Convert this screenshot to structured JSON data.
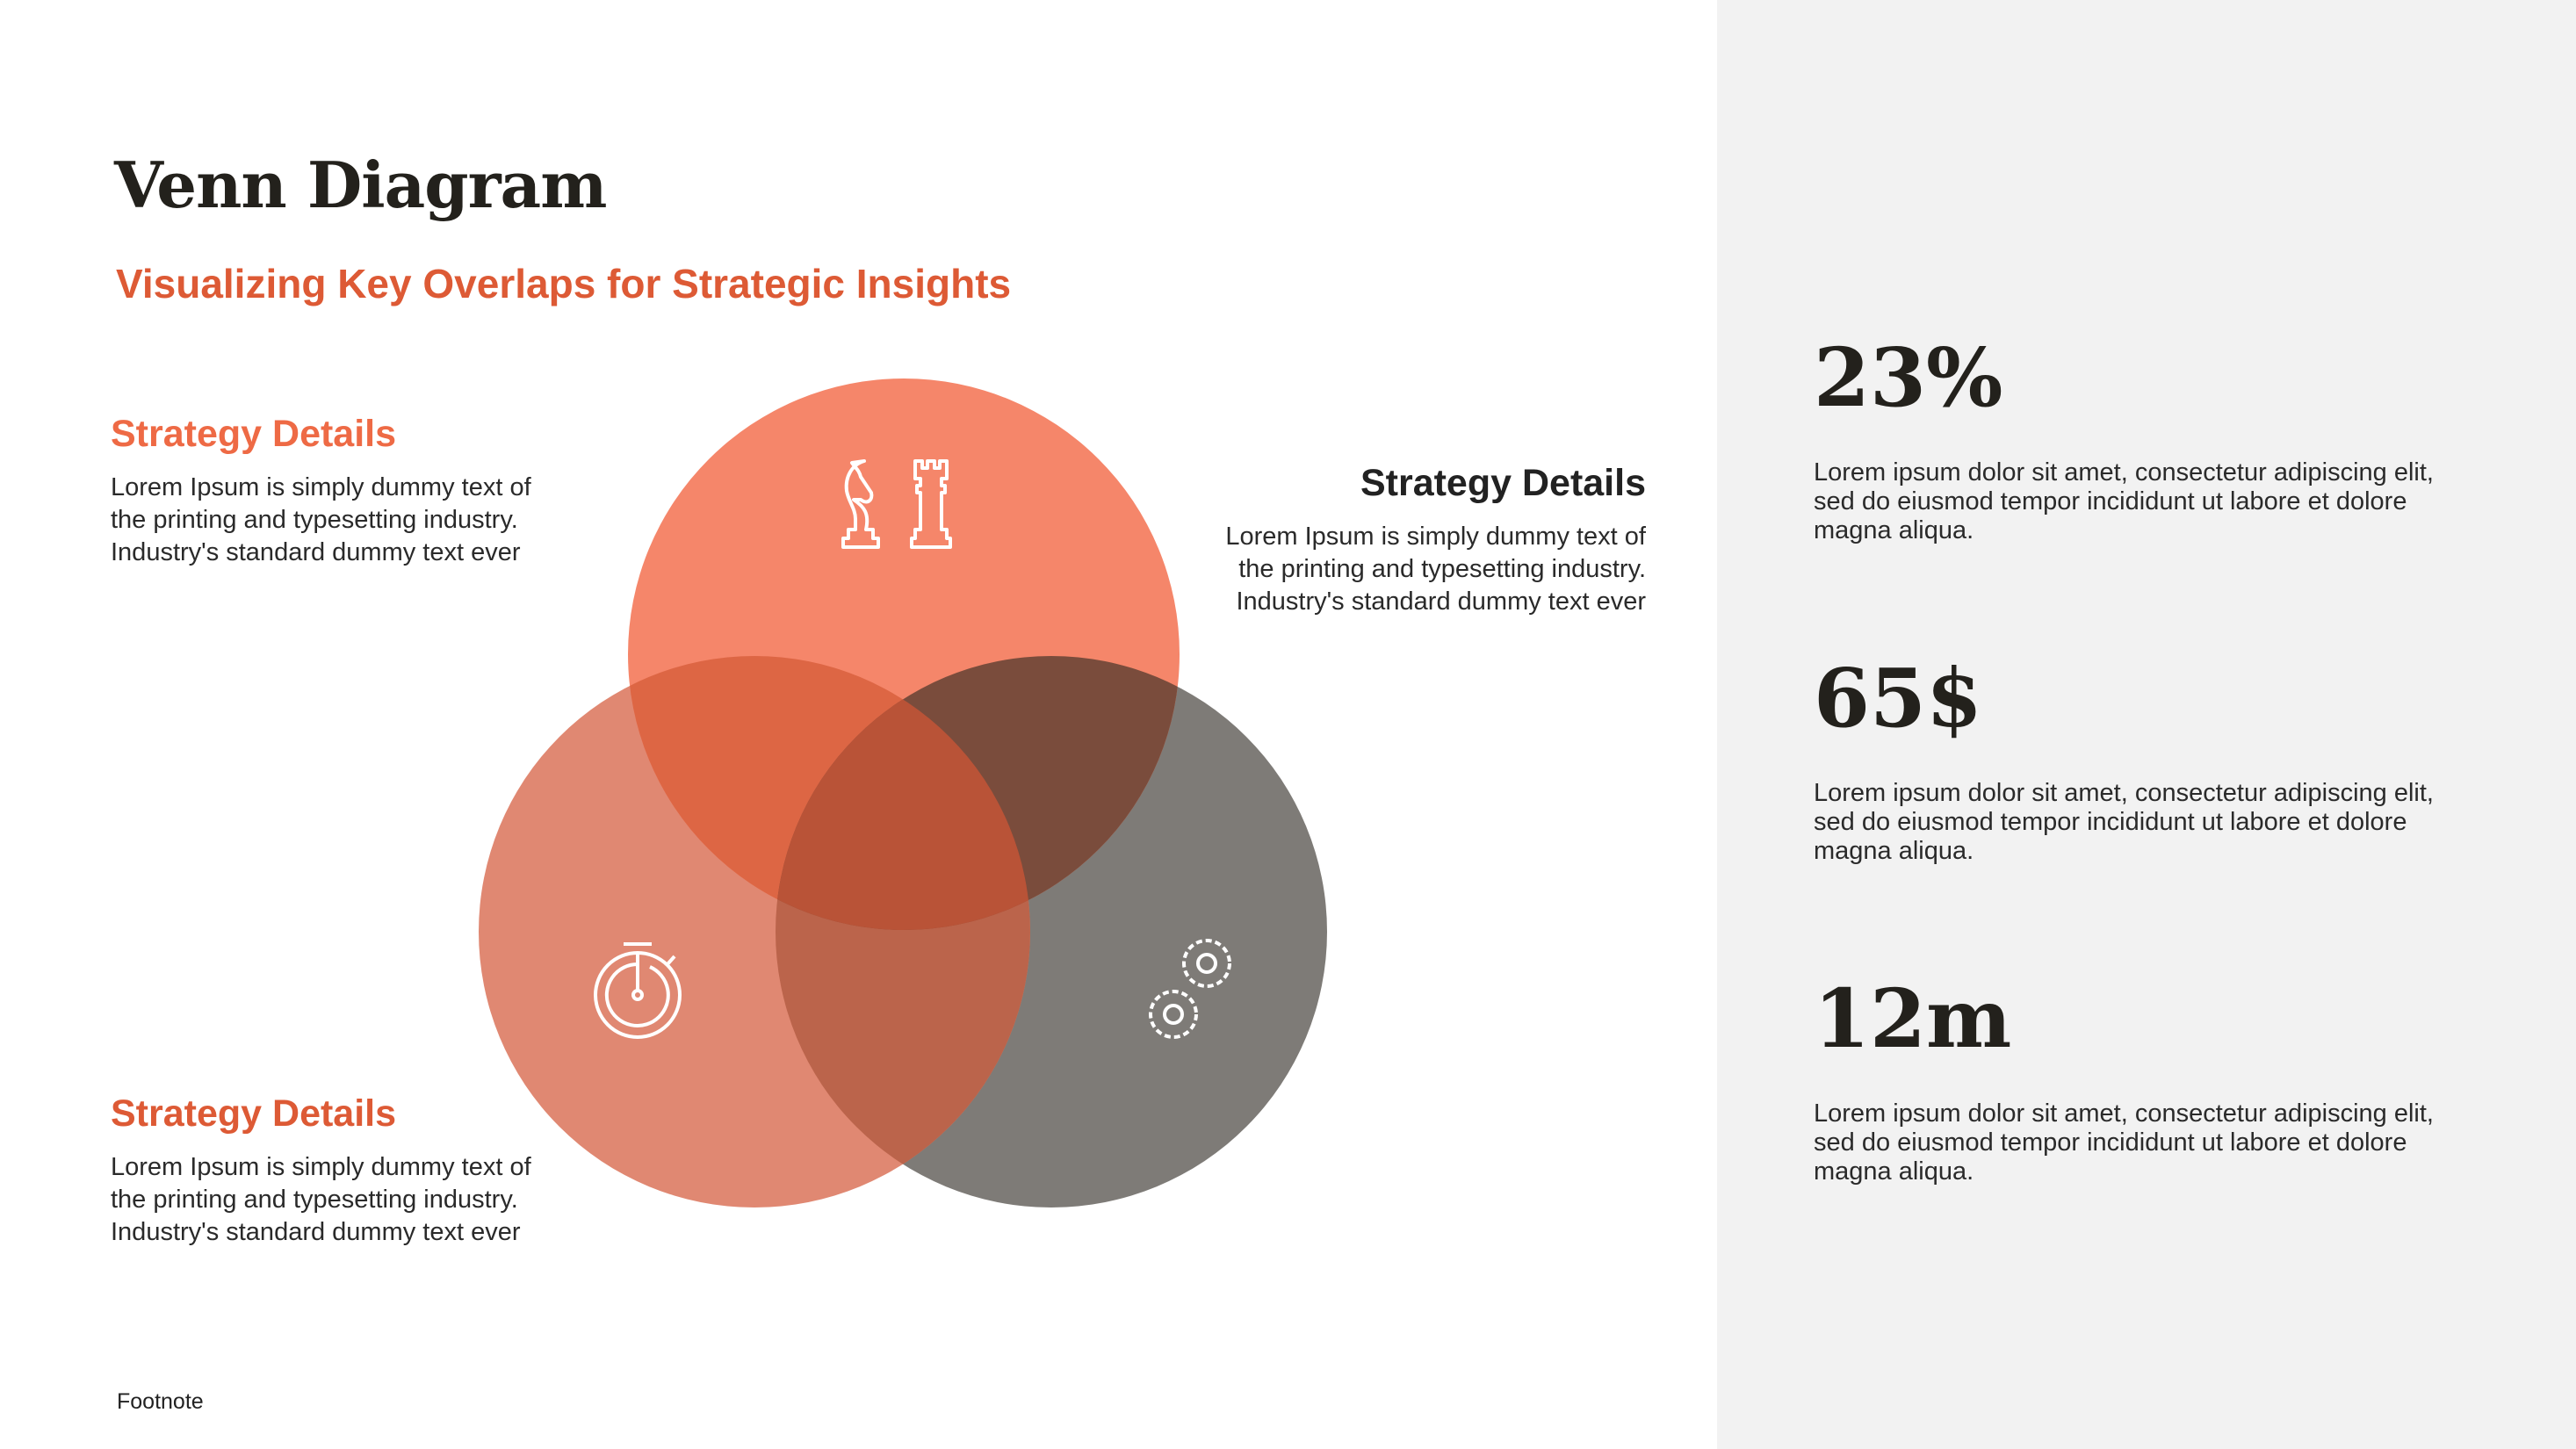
{
  "header": {
    "title": "Venn Diagram",
    "subtitle": "Visualizing Key Overlaps for Strategic Insights"
  },
  "venn": {
    "sets": [
      {
        "id": "top",
        "icon": "chess-icon",
        "color": "#F5866A"
      },
      {
        "id": "left",
        "icon": "stopwatch-icon",
        "color": "#E08872"
      },
      {
        "id": "right",
        "icon": "gears-icon",
        "color": "#7E7B77"
      }
    ],
    "overlap_colors": {
      "top_left": "#DD6644",
      "top_right": "#7A4C3C",
      "left_right": "#BB644B",
      "all": "#B95337"
    }
  },
  "details": [
    {
      "title": "Strategy Details",
      "text": "Lorem Ipsum is simply dummy text of the printing and typesetting industry. Industry's standard dummy text ever"
    },
    {
      "title": "Strategy Details",
      "text": "Lorem Ipsum is simply dummy text of the printing and typesetting industry. Industry's standard dummy text ever"
    },
    {
      "title": "Strategy Details",
      "text": "Lorem Ipsum is simply dummy text of the printing and typesetting industry. Industry's standard dummy text ever"
    }
  ],
  "stats": [
    {
      "value": "23%",
      "text": "Lorem ipsum dolor sit amet, consectetur adipiscing elit, sed do eiusmod tempor incididunt ut labore et dolore magna aliqua."
    },
    {
      "value": "65$",
      "text": "Lorem ipsum dolor sit amet, consectetur adipiscing elit, sed do eiusmod tempor incididunt ut labore et dolore magna aliqua."
    },
    {
      "value": "12m",
      "text": "Lorem ipsum dolor sit amet, consectetur adipiscing elit, sed do eiusmod tempor incididunt ut labore et dolore magna aliqua."
    }
  ],
  "footnote": "Footnote",
  "colors": {
    "accent": "#DD5A35",
    "panel": "#F2F2F2",
    "text": "#23211C"
  }
}
